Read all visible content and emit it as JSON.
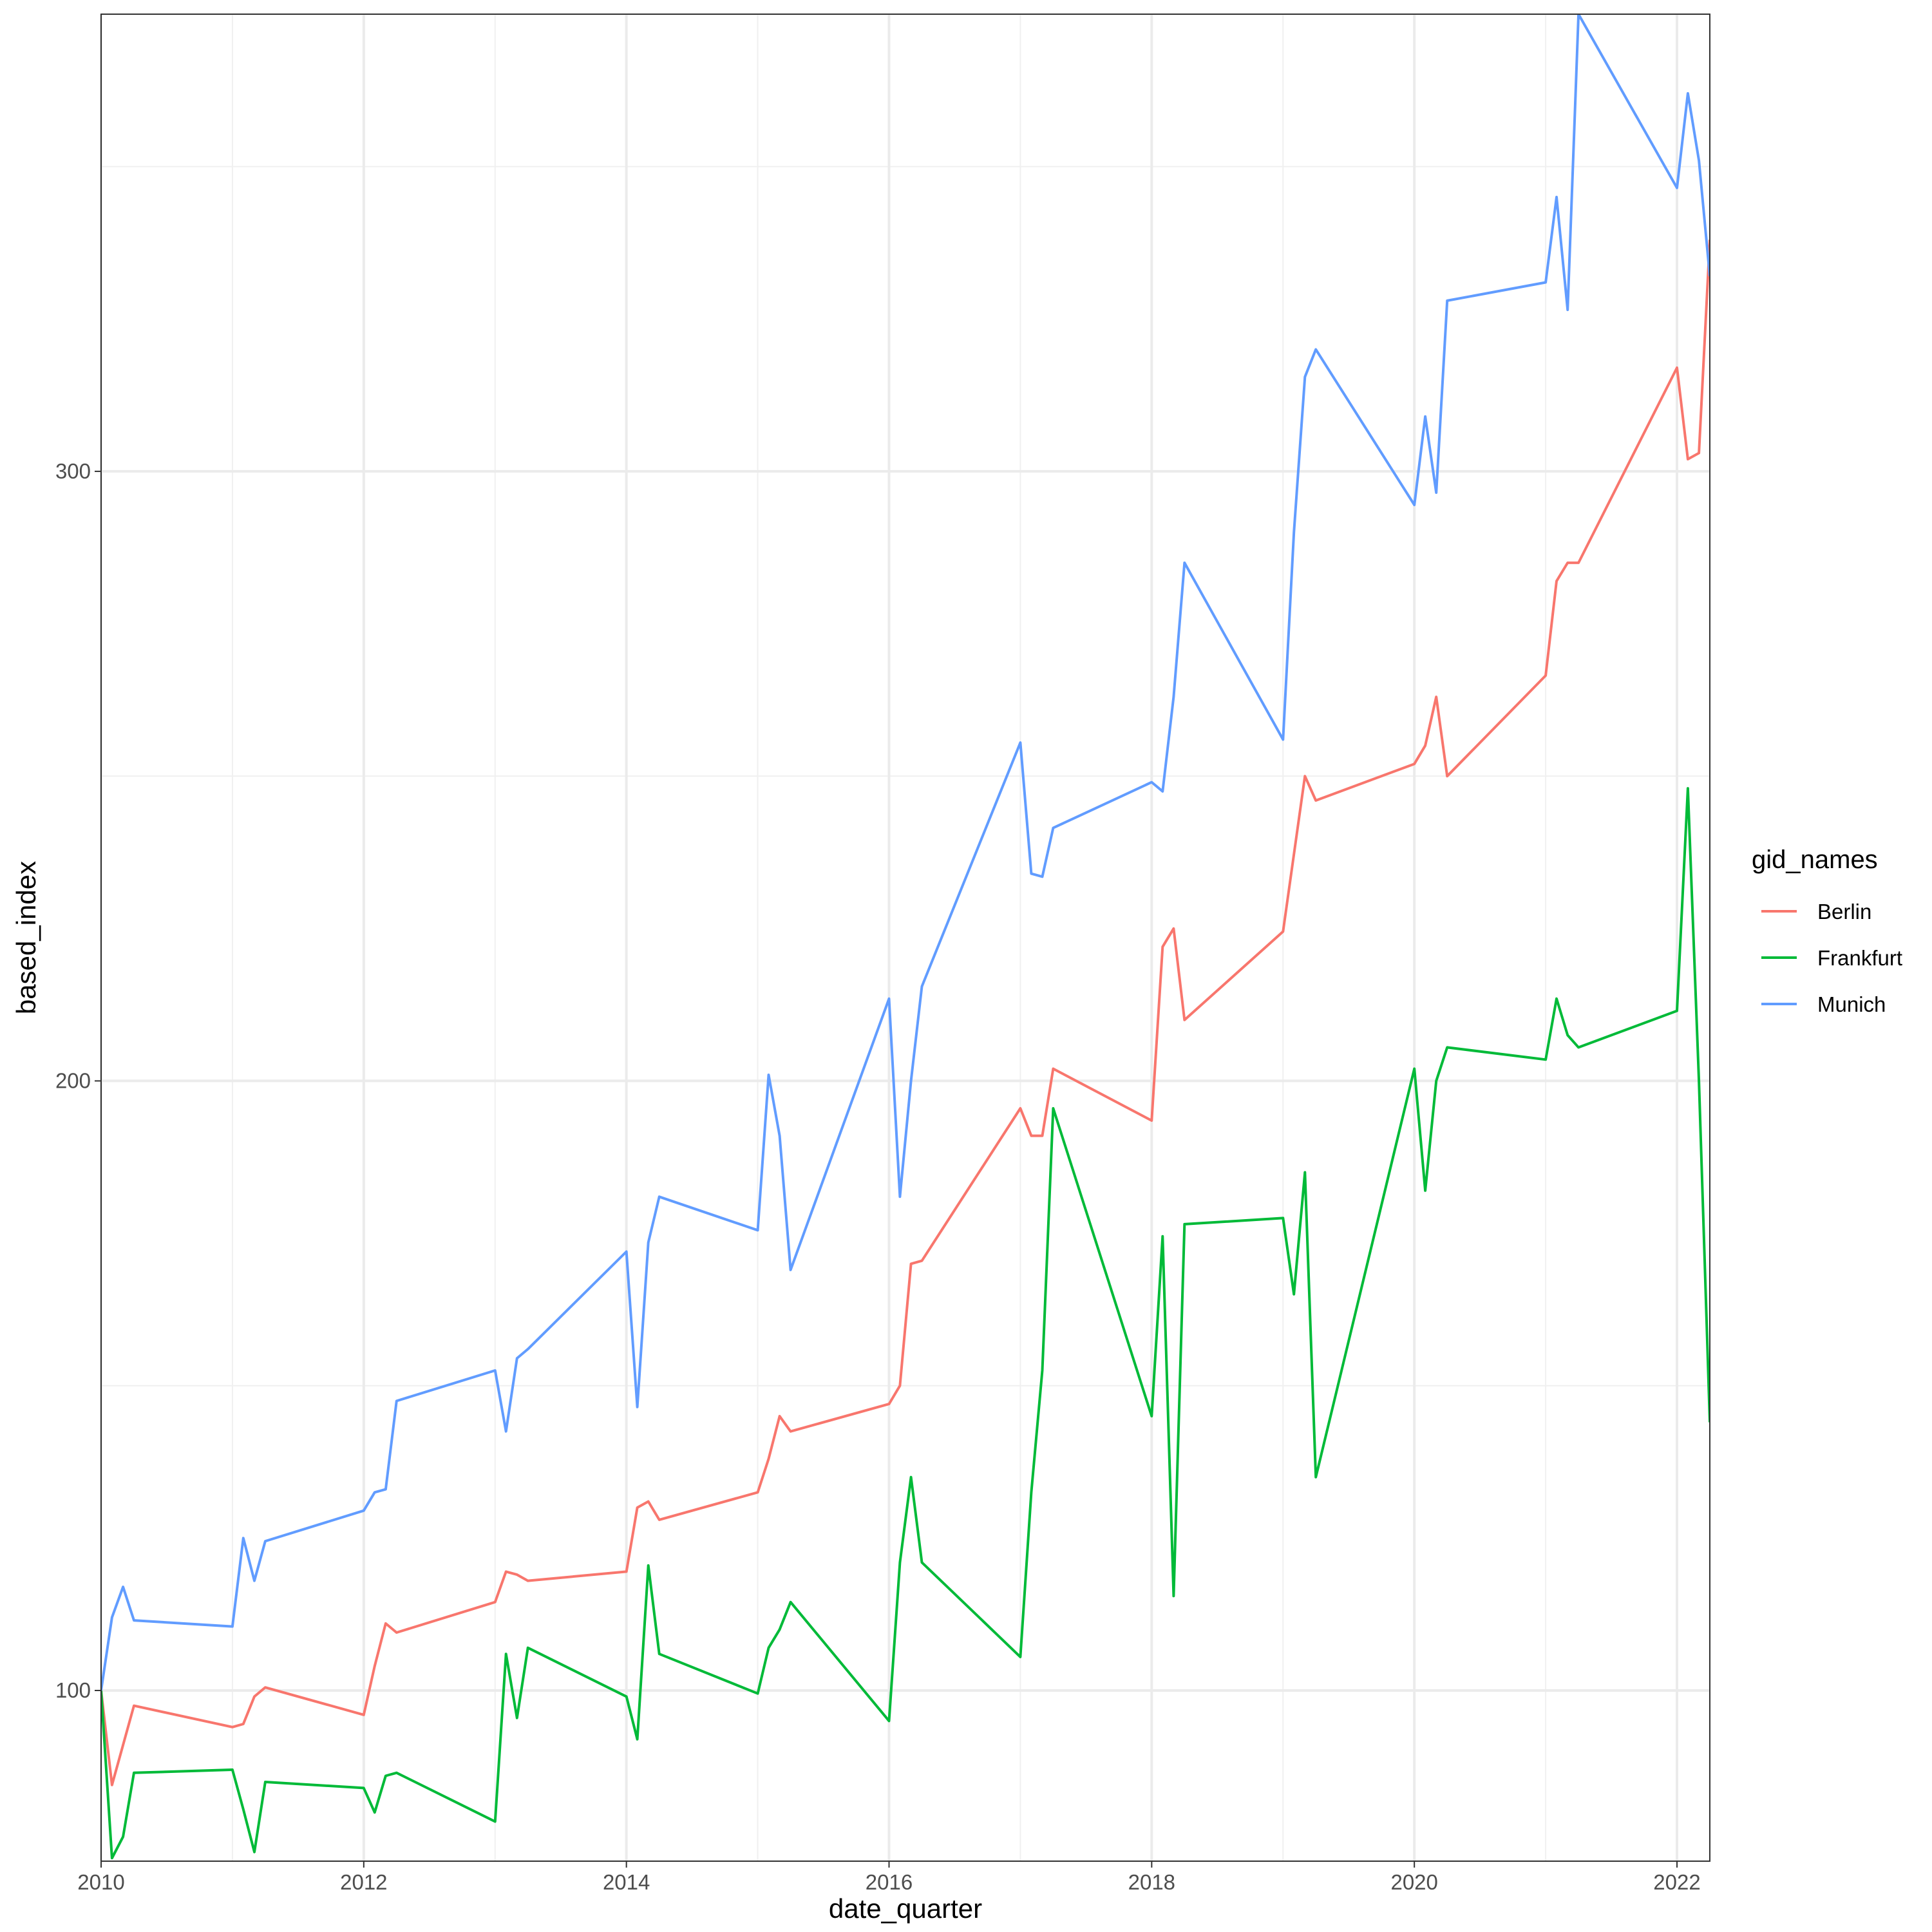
{
  "chart_data": {
    "type": "line",
    "title": "",
    "xlabel": "date_quarter",
    "ylabel": "based_index",
    "xlim": [
      2010.0,
      2022.25
    ],
    "ylim": [
      72,
      375
    ],
    "x_ticks": [
      2010,
      2012,
      2014,
      2016,
      2018,
      2020,
      2022
    ],
    "x_tick_labels": [
      "2010",
      "2012",
      "2014",
      "2016",
      "2018",
      "2020",
      "2022"
    ],
    "y_ticks": [
      100,
      200,
      300
    ],
    "y_tick_labels": [
      "100",
      "200",
      "300"
    ],
    "y_minor_ticks": [
      150,
      250,
      350
    ],
    "grid": true,
    "legend": {
      "title": "gid_names",
      "position": "right"
    },
    "series": [
      {
        "name": "Berlin",
        "color": "#F8766D",
        "points": [
          [
            2010.0,
            100
          ],
          [
            2010.083,
            84.5
          ],
          [
            2010.25,
            97.5
          ],
          [
            2011.0,
            94
          ],
          [
            2011.083,
            94.5
          ],
          [
            2011.167,
            99
          ],
          [
            2011.25,
            100.5
          ],
          [
            2012.0,
            96
          ],
          [
            2012.083,
            104
          ],
          [
            2012.167,
            111
          ],
          [
            2012.25,
            109.5
          ],
          [
            2013.0,
            114.5
          ],
          [
            2013.083,
            119.5
          ],
          [
            2013.167,
            119
          ],
          [
            2013.25,
            118
          ],
          [
            2014.0,
            119.5
          ],
          [
            2014.083,
            130
          ],
          [
            2014.167,
            131
          ],
          [
            2014.25,
            128
          ],
          [
            2015.0,
            132.5
          ],
          [
            2015.083,
            138
          ],
          [
            2015.167,
            145
          ],
          [
            2015.25,
            142.5
          ],
          [
            2016.0,
            147
          ],
          [
            2016.083,
            150
          ],
          [
            2016.167,
            170
          ],
          [
            2016.25,
            170.5
          ],
          [
            2017.0,
            195.5
          ],
          [
            2017.083,
            191
          ],
          [
            2017.167,
            191
          ],
          [
            2017.25,
            202
          ],
          [
            2018.0,
            193.5
          ],
          [
            2018.083,
            222
          ],
          [
            2018.167,
            225
          ],
          [
            2018.25,
            210
          ],
          [
            2019.0,
            224.5
          ],
          [
            2019.167,
            250
          ],
          [
            2019.25,
            246
          ],
          [
            2020.0,
            252
          ],
          [
            2020.083,
            255
          ],
          [
            2020.167,
            263
          ],
          [
            2020.25,
            250
          ],
          [
            2021.0,
            266.5
          ],
          [
            2021.083,
            282
          ],
          [
            2021.167,
            285
          ],
          [
            2021.25,
            285
          ],
          [
            2022.0,
            317
          ],
          [
            2022.083,
            302
          ],
          [
            2022.167,
            303
          ],
          [
            2022.25,
            338
          ]
        ]
      },
      {
        "name": "Frankfurt",
        "color": "#00BA38",
        "points": [
          [
            2010.0,
            100
          ],
          [
            2010.083,
            72.5
          ],
          [
            2010.167,
            76
          ],
          [
            2010.25,
            86.5
          ],
          [
            2011.0,
            87
          ],
          [
            2011.083,
            80.5
          ],
          [
            2011.167,
            73.5
          ],
          [
            2011.25,
            85
          ],
          [
            2012.0,
            84
          ],
          [
            2012.083,
            80
          ],
          [
            2012.167,
            86
          ],
          [
            2012.25,
            86.5
          ],
          [
            2013.0,
            78.5
          ],
          [
            2013.083,
            106
          ],
          [
            2013.167,
            95.5
          ],
          [
            2013.25,
            107
          ],
          [
            2014.0,
            99
          ],
          [
            2014.083,
            92
          ],
          [
            2014.167,
            120.5
          ],
          [
            2014.25,
            106
          ],
          [
            2015.0,
            99.5
          ],
          [
            2015.083,
            107
          ],
          [
            2015.167,
            110
          ],
          [
            2015.25,
            114.5
          ],
          [
            2016.0,
            95
          ],
          [
            2016.083,
            121
          ],
          [
            2016.167,
            135
          ],
          [
            2016.25,
            121
          ],
          [
            2017.0,
            105.5
          ],
          [
            2017.083,
            132.5
          ],
          [
            2017.167,
            152.5
          ],
          [
            2017.25,
            195.5
          ],
          [
            2018.0,
            145
          ],
          [
            2018.083,
            174.5
          ],
          [
            2018.167,
            115.5
          ],
          [
            2018.25,
            176.5
          ],
          [
            2019.0,
            177.5
          ],
          [
            2019.083,
            165
          ],
          [
            2019.167,
            185
          ],
          [
            2019.25,
            135
          ],
          [
            2020.0,
            202
          ],
          [
            2020.083,
            182
          ],
          [
            2020.167,
            200
          ],
          [
            2020.25,
            205.5
          ],
          [
            2021.0,
            203.5
          ],
          [
            2021.083,
            213.5
          ],
          [
            2021.167,
            207.5
          ],
          [
            2021.25,
            205.5
          ],
          [
            2022.0,
            211.5
          ],
          [
            2022.083,
            248
          ],
          [
            2022.167,
            200
          ],
          [
            2022.25,
            144
          ]
        ]
      },
      {
        "name": "Munich",
        "color": "#619CFF",
        "points": [
          [
            2010.0,
            100
          ],
          [
            2010.083,
            112
          ],
          [
            2010.167,
            117
          ],
          [
            2010.25,
            111.5
          ],
          [
            2011.0,
            110.5
          ],
          [
            2011.083,
            125
          ],
          [
            2011.167,
            118
          ],
          [
            2011.25,
            124.5
          ],
          [
            2012.0,
            129.5
          ],
          [
            2012.083,
            132.5
          ],
          [
            2012.167,
            133
          ],
          [
            2012.25,
            147.5
          ],
          [
            2013.0,
            152.5
          ],
          [
            2013.083,
            142.5
          ],
          [
            2013.167,
            154.5
          ],
          [
            2013.25,
            156
          ],
          [
            2014.0,
            172
          ],
          [
            2014.083,
            146.5
          ],
          [
            2014.167,
            173.5
          ],
          [
            2014.25,
            181
          ],
          [
            2015.0,
            175.5
          ],
          [
            2015.083,
            201
          ],
          [
            2015.167,
            191
          ],
          [
            2015.25,
            169
          ],
          [
            2016.0,
            213.5
          ],
          [
            2016.083,
            181
          ],
          [
            2016.167,
            200
          ],
          [
            2016.25,
            215.5
          ],
          [
            2017.0,
            255.5
          ],
          [
            2017.083,
            234
          ],
          [
            2017.167,
            233.5
          ],
          [
            2017.25,
            241.5
          ],
          [
            2018.0,
            249
          ],
          [
            2018.083,
            247.5
          ],
          [
            2018.167,
            263
          ],
          [
            2018.25,
            285
          ],
          [
            2019.0,
            256
          ],
          [
            2019.083,
            290
          ],
          [
            2019.167,
            315.5
          ],
          [
            2019.25,
            320
          ],
          [
            2020.0,
            294.5
          ],
          [
            2020.083,
            309
          ],
          [
            2020.167,
            296.5
          ],
          [
            2020.25,
            328
          ],
          [
            2021.0,
            331
          ],
          [
            2021.083,
            345
          ],
          [
            2021.167,
            326.5
          ],
          [
            2021.25,
            375
          ],
          [
            2022.0,
            346.5
          ],
          [
            2022.083,
            362
          ],
          [
            2022.167,
            351
          ],
          [
            2022.25,
            332
          ]
        ]
      }
    ]
  }
}
